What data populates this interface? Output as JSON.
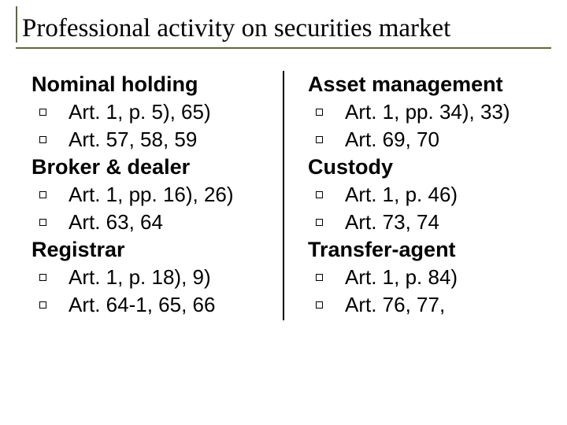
{
  "title": "Professional activity on securities market",
  "columns": {
    "left": [
      {
        "heading": "Nominal holding",
        "items": [
          "Art. 1, p. 5), 65)",
          "Art. 57, 58, 59"
        ]
      },
      {
        "heading": "Broker & dealer",
        "items": [
          "Art. 1, pp. 16), 26)",
          "Art. 63, 64"
        ]
      },
      {
        "heading": "Registrar",
        "items": [
          "Art. 1, p. 18), 9)",
          "Art. 64-1, 65, 66"
        ]
      }
    ],
    "right": [
      {
        "heading": "Asset management",
        "items": [
          "Art. 1, pp. 34), 33)",
          "Art. 69, 70"
        ]
      },
      {
        "heading": "Custody",
        "items": [
          "Art. 1, p. 46)",
          "Art. 73, 74"
        ]
      },
      {
        "heading": "Transfer-agent",
        "items": [
          "Art. 1, p. 84)",
          "Art. 76, 77,"
        ]
      }
    ]
  }
}
